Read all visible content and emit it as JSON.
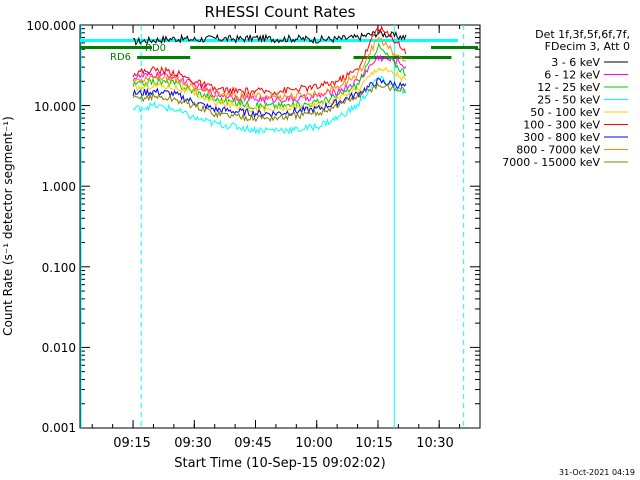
{
  "chart_data": {
    "type": "line",
    "title": "RHESSI Count Rates",
    "xlabel": "Start Time (10-Sep-15 09:02:02)",
    "ylabel": "Count Rate (s⁻¹ detector segment⁻¹)",
    "yscale": "log",
    "ylim": [
      0.001,
      100
    ],
    "xlim_minutes": [
      "09:02",
      "10:40"
    ],
    "x_tick_labels": [
      "09:15",
      "09:30",
      "09:45",
      "10:00",
      "10:15",
      "10:30"
    ],
    "y_tick_labels": [
      "100.000",
      "10.000",
      "1.000",
      "0.100",
      "0.010",
      "0.001"
    ],
    "grid": false,
    "legend_position": "right",
    "legend_header": [
      "Det 1f,3f,5f,6f,7f,",
      "FDecim 3, Att 0"
    ],
    "footer": "31-Oct-2021 04:19",
    "x": [
      "09:15",
      "09:20",
      "09:25",
      "09:30",
      "09:35",
      "09:40",
      "09:45",
      "09:50",
      "09:55",
      "10:00",
      "10:05",
      "10:10",
      "10:15",
      "10:20",
      "10:22"
    ],
    "series": [
      {
        "name": "3 - 6 keV",
        "color": "#000000",
        "values": [
          62,
          65,
          68,
          66,
          68,
          67,
          69,
          67,
          68,
          66,
          67,
          70,
          80,
          72,
          70
        ]
      },
      {
        "name": "6 - 12 keV",
        "color": "#ff00ff",
        "values": [
          22,
          24,
          23,
          18,
          14,
          13,
          12,
          12,
          12,
          13,
          15,
          20,
          40,
          35,
          30
        ]
      },
      {
        "name": "12 - 25 keV",
        "color": "#00cc00",
        "values": [
          18,
          20,
          19,
          15,
          12,
          11,
          10,
          10,
          10,
          11,
          13,
          18,
          55,
          30,
          25
        ]
      },
      {
        "name": "25 - 50 keV",
        "color": "#00ffff",
        "values": [
          9,
          10,
          9,
          7,
          6,
          5.5,
          5,
          5,
          5,
          5.5,
          7,
          10,
          22,
          16,
          14
        ]
      },
      {
        "name": "50 - 100 keV",
        "color": "#ffcc00",
        "values": [
          16,
          18,
          17,
          14,
          11,
          10,
          9,
          9,
          9.5,
          10,
          12,
          16,
          30,
          24,
          20
        ]
      },
      {
        "name": "100 - 300 keV",
        "color": "#ff0000",
        "values": [
          25,
          28,
          26,
          20,
          16,
          15,
          15,
          15,
          16,
          17,
          20,
          28,
          95,
          60,
          45
        ]
      },
      {
        "name": "300 - 800 keV",
        "color": "#0000ff",
        "values": [
          14,
          15,
          14,
          11,
          9,
          8.5,
          8,
          8,
          8.5,
          9,
          11,
          14,
          20,
          18,
          17
        ]
      },
      {
        "name": "800 - 7000 keV",
        "color": "#ff8c00",
        "values": [
          20,
          23,
          22,
          17,
          14,
          13,
          13,
          13,
          13,
          14,
          17,
          24,
          70,
          40,
          35
        ]
      },
      {
        "name": "7000 - 15000 keV",
        "color": "#808000",
        "values": [
          12,
          13,
          12,
          10,
          8,
          7.5,
          7,
          7,
          7.5,
          8,
          10,
          13,
          18,
          16,
          15
        ]
      }
    ],
    "attenuator_labels": [
      "RD0",
      "RD6"
    ]
  },
  "colors": {
    "cyan_marker": "#00ffff",
    "green_marker": "#008000"
  }
}
